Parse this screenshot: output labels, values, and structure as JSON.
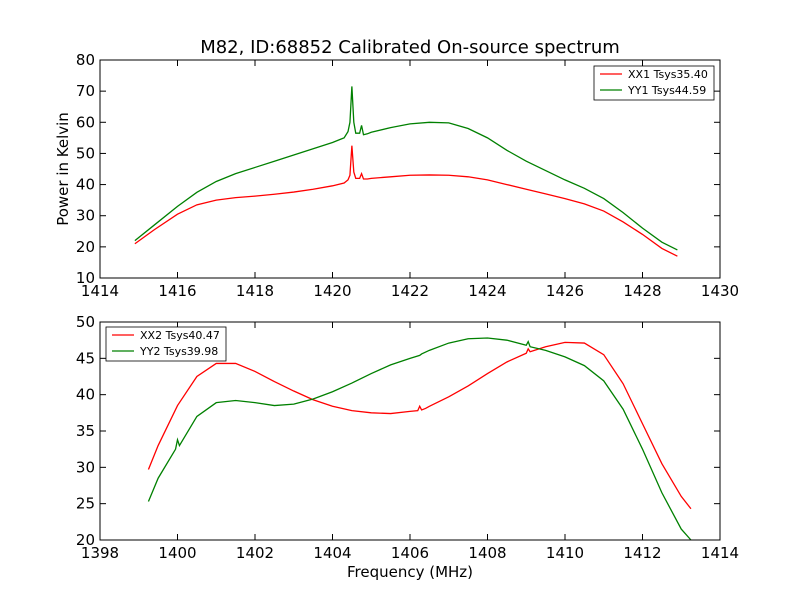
{
  "chart_data": {
    "type": "line",
    "title": "M82, ID:68852 Calibrated On-source spectrum",
    "xlabel": "Frequency (MHz)",
    "panels": [
      {
        "ylabel": "Power in Kelvin",
        "xlim": [
          1414,
          1430
        ],
        "ylim": [
          10,
          80
        ],
        "xticks": [
          "1414",
          "1416",
          "1418",
          "1420",
          "1422",
          "1424",
          "1426",
          "1428",
          "1430"
        ],
        "yticks": [
          "10",
          "20",
          "30",
          "40",
          "50",
          "60",
          "70",
          "80"
        ],
        "xtick_values": [
          1414,
          1416,
          1418,
          1420,
          1422,
          1424,
          1426,
          1428,
          1430
        ],
        "ytick_values": [
          10,
          20,
          30,
          40,
          50,
          60,
          70,
          80
        ],
        "legend_position": "top-right",
        "series": [
          {
            "name": "XX1 Tsys35.40",
            "color": "#ff0000",
            "x": [
              1414.9,
              1415.4,
              1416.0,
              1416.5,
              1417.0,
              1417.5,
              1418.0,
              1418.5,
              1419.0,
              1419.5,
              1420.0,
              1420.3,
              1420.4,
              1420.45,
              1420.5,
              1420.55,
              1420.6,
              1420.7,
              1420.75,
              1420.8,
              1420.9,
              1421.0,
              1421.5,
              1422.0,
              1422.5,
              1423.0,
              1423.5,
              1424.0,
              1424.5,
              1425.0,
              1425.5,
              1426.0,
              1426.5,
              1427.0,
              1427.5,
              1428.0,
              1428.5,
              1428.9
            ],
            "values": [
              21,
              25.5,
              30.5,
              33.5,
              35,
              35.8,
              36.3,
              36.9,
              37.6,
              38.5,
              39.6,
              40.5,
              41.5,
              43,
              52.5,
              44,
              42,
              42,
              43.5,
              41.8,
              41.8,
              42,
              42.5,
              43,
              43.1,
              43,
              42.5,
              41.5,
              40,
              38.5,
              37,
              35.5,
              33.8,
              31.5,
              28,
              24,
              19.5,
              17
            ]
          },
          {
            "name": "YY1 Tsys44.59",
            "color": "#008000",
            "x": [
              1414.9,
              1415.4,
              1416.0,
              1416.5,
              1417.0,
              1417.5,
              1418.0,
              1418.5,
              1419.0,
              1419.5,
              1420.0,
              1420.2,
              1420.3,
              1420.4,
              1420.45,
              1420.5,
              1420.55,
              1420.6,
              1420.7,
              1420.75,
              1420.8,
              1420.9,
              1421.0,
              1421.5,
              1422.0,
              1422.5,
              1423.0,
              1423.5,
              1424.0,
              1424.5,
              1425.0,
              1425.5,
              1426.0,
              1426.5,
              1427.0,
              1427.5,
              1428.0,
              1428.5,
              1428.9
            ],
            "values": [
              22,
              27,
              33,
              37.5,
              41,
              43.5,
              45.5,
              47.5,
              49.5,
              51.5,
              53.5,
              54.5,
              55,
              57,
              60,
              71.5,
              60,
              56.5,
              56.5,
              59,
              56,
              56.3,
              56.8,
              58.3,
              59.5,
              60,
              59.8,
              58,
              55,
              51,
              47.5,
              44.5,
              41.5,
              38.8,
              35.5,
              31,
              26,
              21.5,
              19
            ]
          }
        ]
      },
      {
        "ylabel": "",
        "xlim": [
          1398,
          1414
        ],
        "ylim": [
          20,
          50
        ],
        "xticks": [
          "1398",
          "1400",
          "1402",
          "1404",
          "1406",
          "1408",
          "1410",
          "1412",
          "1414"
        ],
        "yticks": [
          "20",
          "25",
          "30",
          "35",
          "40",
          "45",
          "50"
        ],
        "xtick_values": [
          1398,
          1400,
          1402,
          1404,
          1406,
          1408,
          1410,
          1412,
          1414
        ],
        "ytick_values": [
          20,
          25,
          30,
          35,
          40,
          45,
          50
        ],
        "legend_position": "top-left",
        "series": [
          {
            "name": "XX2 Tsys40.47",
            "color": "#ff0000",
            "x": [
              1399.25,
              1399.5,
              1400.0,
              1400.5,
              1401.0,
              1401.5,
              1402.0,
              1402.5,
              1403.0,
              1403.5,
              1404.0,
              1404.5,
              1405.0,
              1405.5,
              1406.0,
              1406.2,
              1406.25,
              1406.3,
              1406.4,
              1406.5,
              1407.0,
              1407.5,
              1408.0,
              1408.5,
              1409.0,
              1409.05,
              1409.1,
              1409.5,
              1410.0,
              1410.5,
              1411.0,
              1411.5,
              1412.0,
              1412.5,
              1413.0,
              1413.25
            ],
            "values": [
              29.7,
              33,
              38.5,
              42.5,
              44.3,
              44.3,
              43.2,
              41.8,
              40.5,
              39.3,
              38.4,
              37.8,
              37.5,
              37.4,
              37.7,
              37.8,
              38.4,
              37.9,
              38.1,
              38.4,
              39.7,
              41.2,
              42.9,
              44.5,
              45.7,
              46.3,
              45.9,
              46.6,
              47.2,
              47.1,
              45.5,
              41.5,
              36,
              30.5,
              26,
              24.3
            ]
          },
          {
            "name": "YY2 Tsys39.98",
            "color": "#008000",
            "x": [
              1399.25,
              1399.5,
              1399.95,
              1400.0,
              1400.05,
              1400.5,
              1401.0,
              1401.5,
              1402.0,
              1402.5,
              1403.0,
              1403.5,
              1404.0,
              1404.5,
              1405.0,
              1405.5,
              1406.0,
              1406.25,
              1406.3,
              1406.5,
              1407.0,
              1407.5,
              1408.0,
              1408.5,
              1409.0,
              1409.05,
              1409.1,
              1409.5,
              1410.0,
              1410.5,
              1411.0,
              1411.5,
              1412.0,
              1412.5,
              1413.0,
              1413.25
            ],
            "values": [
              25.3,
              28.5,
              32.5,
              33.8,
              33,
              37,
              38.9,
              39.2,
              38.9,
              38.5,
              38.7,
              39.4,
              40.4,
              41.6,
              42.9,
              44.1,
              45,
              45.4,
              45.6,
              46.1,
              47.1,
              47.7,
              47.8,
              47.5,
              46.8,
              47.3,
              46.6,
              46.1,
              45.2,
              44,
              41.9,
              38,
              32.5,
              26.5,
              21.5,
              20
            ]
          }
        ]
      }
    ]
  }
}
